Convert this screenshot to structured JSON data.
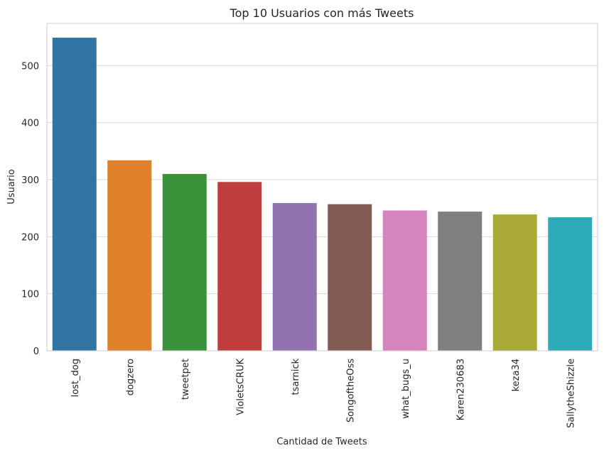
{
  "chart_data": {
    "type": "bar",
    "title": "Top 10 Usuarios con más Tweets",
    "xlabel": "Cantidad de Tweets",
    "ylabel": "Usuario",
    "categories": [
      "lost_dog",
      "dogzero",
      "tweetpet",
      "VioletsCRUK",
      "tsarnick",
      "SongoftheOss",
      "what_bugs_u",
      "Karen230683",
      "keza34",
      "SallytheShizzle"
    ],
    "values": [
      549,
      334,
      310,
      296,
      259,
      257,
      246,
      244,
      239,
      234
    ],
    "colors": [
      "#3274a1",
      "#e1812c",
      "#3a923a",
      "#c03d3e",
      "#9372b2",
      "#845b53",
      "#d684bd",
      "#7f7f7f",
      "#a9aa35",
      "#2eabb8"
    ],
    "ylim": [
      0,
      574
    ],
    "yticks": [
      0,
      100,
      200,
      300,
      400,
      500
    ],
    "grid": true,
    "style": "whitegrid"
  }
}
